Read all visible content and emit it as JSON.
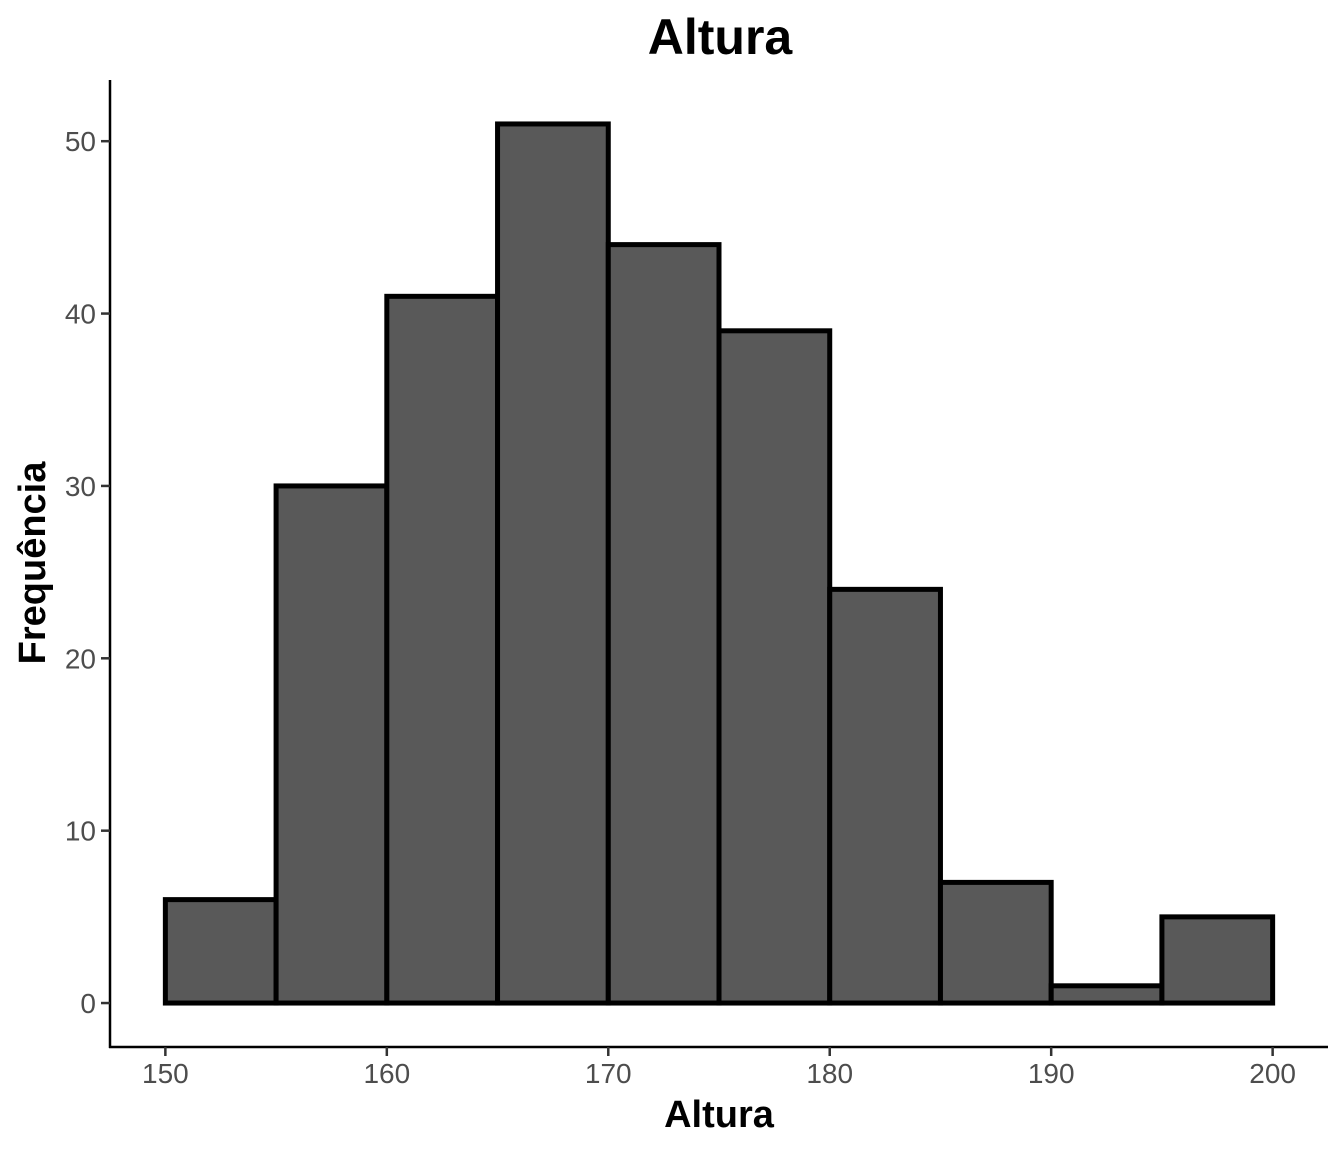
{
  "chart_data": {
    "type": "bar",
    "title": "Altura",
    "xlabel": "Altura",
    "ylabel": "Frequência",
    "bins": [
      {
        "x0": 150,
        "x1": 155,
        "count": 6
      },
      {
        "x0": 155,
        "x1": 160,
        "count": 30
      },
      {
        "x0": 160,
        "x1": 165,
        "count": 41
      },
      {
        "x0": 165,
        "x1": 170,
        "count": 51
      },
      {
        "x0": 170,
        "x1": 175,
        "count": 44
      },
      {
        "x0": 175,
        "x1": 180,
        "count": 39
      },
      {
        "x0": 180,
        "x1": 185,
        "count": 24
      },
      {
        "x0": 185,
        "x1": 190,
        "count": 7
      },
      {
        "x0": 190,
        "x1": 195,
        "count": 1
      },
      {
        "x0": 195,
        "x1": 200,
        "count": 5
      }
    ],
    "xlim": [
      147.5,
      202.5
    ],
    "ylim": [
      -2.55,
      53.55
    ],
    "x_ticks": [
      "150",
      "160",
      "170",
      "180",
      "190",
      "200"
    ],
    "y_ticks": [
      "0",
      "10",
      "20",
      "30",
      "40",
      "50"
    ],
    "grid": false,
    "legend": "none",
    "colors": {
      "fill": "#595959",
      "outline": "#000000",
      "tick_label": "#4d4d4d"
    }
  }
}
